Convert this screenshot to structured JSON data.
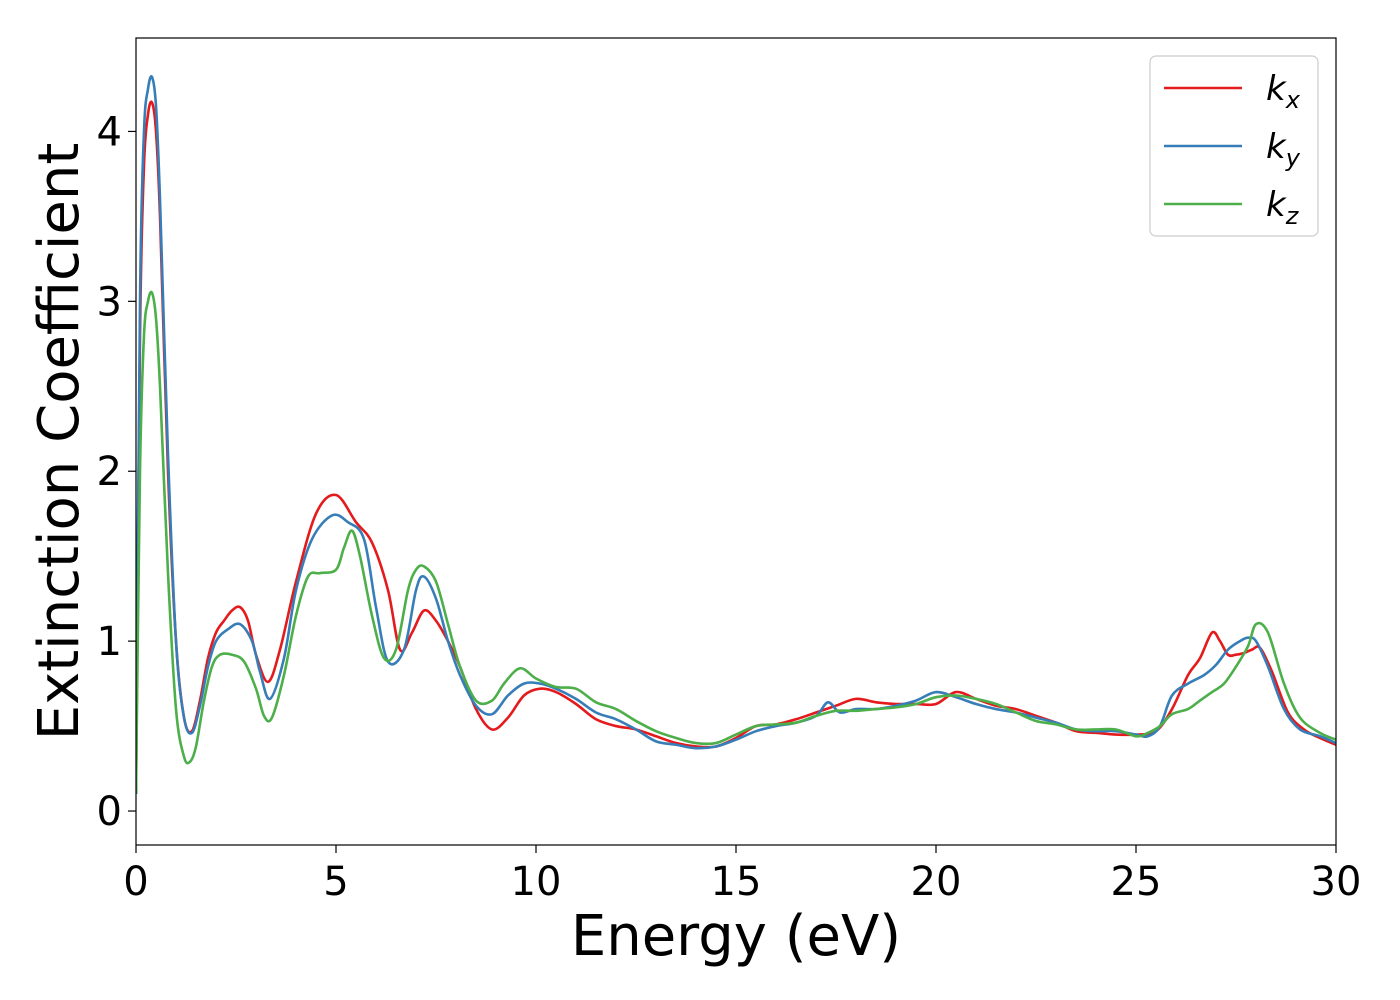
{
  "chart_data": {
    "type": "line",
    "xlabel": "Energy (eV)",
    "ylabel": "Extinction Coefficient",
    "xlim": [
      0,
      30
    ],
    "ylim": [
      -0.2,
      4.55
    ],
    "xticks": [
      "0",
      "5",
      "10",
      "15",
      "20",
      "25",
      "30"
    ],
    "yticks": [
      "0",
      "1",
      "2",
      "3",
      "4"
    ],
    "grid": false,
    "legend_position": "top-right",
    "series": [
      {
        "name": "kx",
        "legend_main": "k",
        "legend_sub": "x",
        "color": "#e41a1c",
        "x": [
          0,
          0.1,
          0.2,
          0.3,
          0.4,
          0.5,
          0.6,
          0.8,
          1.0,
          1.2,
          1.4,
          1.6,
          1.8,
          2.0,
          2.2,
          2.4,
          2.6,
          2.8,
          3.0,
          3.3,
          3.6,
          4.0,
          4.5,
          5.0,
          5.5,
          5.9,
          6.3,
          6.6,
          6.9,
          7.2,
          7.5,
          7.8,
          8.1,
          8.5,
          8.9,
          9.3,
          9.7,
          10.1,
          10.5,
          11.0,
          11.5,
          12.0,
          12.5,
          13.0,
          13.5,
          14.0,
          14.5,
          15.0,
          15.5,
          16.0,
          16.5,
          17.0,
          17.5,
          18.0,
          18.5,
          19.0,
          19.5,
          20.0,
          20.5,
          21.0,
          21.5,
          22.0,
          22.5,
          23.0,
          23.5,
          24.0,
          24.5,
          25.0,
          25.5,
          25.9,
          26.3,
          26.6,
          26.9,
          27.1,
          27.3,
          27.5,
          27.7,
          27.9,
          28.1,
          28.4,
          28.8,
          29.2,
          29.6,
          30.0
        ],
        "y": [
          0.1,
          2.8,
          3.8,
          4.1,
          4.17,
          4.0,
          3.5,
          2.0,
          1.0,
          0.55,
          0.47,
          0.65,
          0.9,
          1.05,
          1.12,
          1.18,
          1.2,
          1.12,
          0.92,
          0.76,
          0.95,
          1.35,
          1.75,
          1.86,
          1.7,
          1.58,
          1.3,
          0.95,
          1.05,
          1.18,
          1.12,
          1.0,
          0.85,
          0.6,
          0.48,
          0.55,
          0.68,
          0.72,
          0.7,
          0.63,
          0.54,
          0.5,
          0.48,
          0.44,
          0.4,
          0.38,
          0.38,
          0.43,
          0.5,
          0.51,
          0.54,
          0.58,
          0.62,
          0.66,
          0.64,
          0.63,
          0.63,
          0.63,
          0.7,
          0.66,
          0.62,
          0.6,
          0.56,
          0.52,
          0.47,
          0.46,
          0.45,
          0.45,
          0.47,
          0.6,
          0.8,
          0.9,
          1.05,
          1.0,
          0.92,
          0.92,
          0.93,
          0.95,
          0.96,
          0.82,
          0.58,
          0.48,
          0.43,
          0.39
        ]
      },
      {
        "name": "ky",
        "legend_main": "k",
        "legend_sub": "y",
        "color": "#377eb8",
        "x": [
          0,
          0.1,
          0.2,
          0.3,
          0.4,
          0.5,
          0.6,
          0.8,
          1.0,
          1.2,
          1.4,
          1.6,
          1.8,
          2.0,
          2.3,
          2.6,
          2.9,
          3.1,
          3.35,
          3.7,
          4.0,
          4.4,
          4.9,
          5.3,
          5.7,
          6.0,
          6.3,
          6.7,
          7.0,
          7.2,
          7.5,
          7.8,
          8.1,
          8.5,
          8.9,
          9.3,
          9.7,
          10.1,
          10.5,
          11.0,
          11.5,
          12.0,
          12.5,
          13.0,
          13.5,
          14.0,
          14.5,
          15.0,
          15.5,
          16.0,
          16.5,
          17.0,
          17.3,
          17.6,
          18.0,
          18.5,
          19.0,
          19.5,
          20.0,
          20.5,
          21.0,
          21.5,
          22.0,
          22.5,
          23.0,
          23.5,
          24.0,
          24.5,
          25.0,
          25.3,
          25.6,
          25.9,
          26.3,
          26.7,
          27.0,
          27.3,
          27.6,
          27.8,
          28.0,
          28.3,
          28.7,
          29.1,
          29.6,
          30.0
        ],
        "y": [
          0.1,
          3.0,
          4.0,
          4.25,
          4.32,
          4.15,
          3.6,
          2.1,
          1.0,
          0.55,
          0.46,
          0.62,
          0.85,
          1.0,
          1.07,
          1.1,
          1.0,
          0.82,
          0.66,
          0.9,
          1.3,
          1.6,
          1.74,
          1.7,
          1.6,
          1.2,
          0.88,
          0.95,
          1.3,
          1.38,
          1.25,
          1.0,
          0.8,
          0.62,
          0.57,
          0.68,
          0.75,
          0.75,
          0.72,
          0.66,
          0.58,
          0.54,
          0.48,
          0.41,
          0.39,
          0.37,
          0.38,
          0.42,
          0.47,
          0.5,
          0.52,
          0.56,
          0.64,
          0.58,
          0.6,
          0.6,
          0.62,
          0.65,
          0.7,
          0.67,
          0.63,
          0.6,
          0.58,
          0.55,
          0.52,
          0.48,
          0.47,
          0.47,
          0.45,
          0.44,
          0.5,
          0.68,
          0.75,
          0.8,
          0.86,
          0.95,
          1.0,
          1.02,
          1.0,
          0.85,
          0.6,
          0.48,
          0.44,
          0.4
        ]
      },
      {
        "name": "kz",
        "legend_main": "k",
        "legend_sub": "z",
        "color": "#4daf4a",
        "x": [
          0,
          0.1,
          0.2,
          0.3,
          0.4,
          0.5,
          0.6,
          0.8,
          1.0,
          1.2,
          1.35,
          1.5,
          1.7,
          1.9,
          2.1,
          2.4,
          2.7,
          3.0,
          3.2,
          3.4,
          3.7,
          4.0,
          4.3,
          4.6,
          5.0,
          5.2,
          5.4,
          5.6,
          5.9,
          6.2,
          6.5,
          6.8,
          7.0,
          7.2,
          7.5,
          7.8,
          8.1,
          8.5,
          8.9,
          9.2,
          9.6,
          10.0,
          10.5,
          11.0,
          11.5,
          12.0,
          12.5,
          13.0,
          13.5,
          14.0,
          14.5,
          15.0,
          15.5,
          16.0,
          16.5,
          17.0,
          17.5,
          18.0,
          18.5,
          19.0,
          19.5,
          20.0,
          20.5,
          21.0,
          21.5,
          22.0,
          22.5,
          23.0,
          23.5,
          24.0,
          24.5,
          25.0,
          25.3,
          25.6,
          25.9,
          26.3,
          26.6,
          26.9,
          27.2,
          27.5,
          27.8,
          28.0,
          28.3,
          28.7,
          29.1,
          29.6,
          30.0
        ],
        "y": [
          0.1,
          2.0,
          2.8,
          3.0,
          3.05,
          2.9,
          2.5,
          1.4,
          0.6,
          0.32,
          0.29,
          0.38,
          0.65,
          0.85,
          0.92,
          0.92,
          0.88,
          0.72,
          0.56,
          0.55,
          0.8,
          1.15,
          1.38,
          1.4,
          1.42,
          1.55,
          1.65,
          1.5,
          1.15,
          0.9,
          0.95,
          1.3,
          1.42,
          1.44,
          1.35,
          1.1,
          0.85,
          0.65,
          0.65,
          0.75,
          0.84,
          0.78,
          0.73,
          0.72,
          0.64,
          0.6,
          0.53,
          0.47,
          0.43,
          0.4,
          0.4,
          0.45,
          0.5,
          0.51,
          0.52,
          0.56,
          0.59,
          0.59,
          0.6,
          0.61,
          0.63,
          0.67,
          0.68,
          0.66,
          0.63,
          0.58,
          0.53,
          0.51,
          0.48,
          0.48,
          0.48,
          0.44,
          0.46,
          0.5,
          0.57,
          0.6,
          0.65,
          0.7,
          0.75,
          0.85,
          0.97,
          1.1,
          1.05,
          0.75,
          0.55,
          0.46,
          0.42
        ]
      }
    ]
  }
}
